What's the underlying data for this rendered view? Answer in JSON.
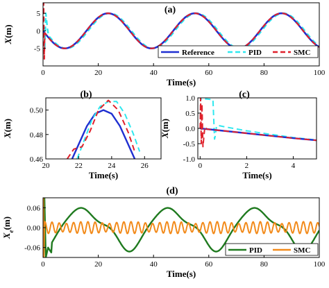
{
  "colors": {
    "reference": "#1f2fd1",
    "pid": "#2fe8ef",
    "smc": "#e0212b",
    "pid_err": "#1f7a1f",
    "smc_err": "#f28a1a"
  },
  "chart_data": [
    {
      "panel_label": "(a)",
      "type": "line",
      "xlabel": "Time(s)",
      "ylabel": "X(m)",
      "xlim": [
        0,
        100
      ],
      "ylim": [
        -10,
        8
      ],
      "xticks": [
        "0",
        "20",
        "40",
        "60",
        "80",
        "100"
      ],
      "yticks": [
        "-5",
        "0",
        "5"
      ],
      "legend": {
        "position": "bottom-right",
        "entries": [
          "Reference",
          "PID",
          "SMC"
        ]
      },
      "series": [
        {
          "name": "Reference",
          "style": "solid",
          "x": [
            0,
            4,
            8,
            12,
            16,
            20,
            24,
            28,
            32,
            36,
            40,
            44,
            48,
            52,
            56,
            60,
            64,
            68,
            72,
            76,
            80,
            84,
            88,
            92,
            96,
            100
          ],
          "y": [
            0,
            -3.6,
            -5,
            -2.2,
            2.2,
            5,
            3.6,
            0,
            -3.6,
            -5,
            -2.2,
            2.2,
            5,
            3.6,
            0,
            -3.6,
            -5,
            -2.2,
            2.2,
            5,
            3.6,
            0,
            -3.6,
            -5,
            -2.2,
            -1.5
          ]
        },
        {
          "name": "PID",
          "style": "dashed",
          "x": [
            0,
            0.3,
            0.6,
            1,
            2,
            4,
            8,
            12,
            16,
            20,
            24,
            28,
            32,
            36,
            40,
            44,
            48,
            52,
            56,
            60,
            64,
            68,
            72,
            76,
            80,
            84,
            88,
            92,
            96,
            100
          ],
          "y": [
            0,
            1,
            -5,
            5,
            0,
            -3.5,
            -5,
            -2.4,
            2,
            4.9,
            3.8,
            0.3,
            -3.4,
            -5,
            -2.4,
            2,
            4.9,
            3.8,
            0.3,
            -3.4,
            -5,
            -2.4,
            2,
            4.9,
            3.8,
            0.3,
            -3.4,
            -5,
            -2.4,
            -1.5
          ]
        },
        {
          "name": "SMC",
          "style": "dashed",
          "x": [
            0,
            0.2,
            0.5,
            1,
            4,
            8,
            12,
            16,
            20,
            24,
            28,
            32,
            36,
            40,
            44,
            48,
            52,
            56,
            60,
            64,
            68,
            72,
            76,
            80,
            84,
            88,
            92,
            96,
            100
          ],
          "y": [
            0,
            8,
            -8,
            -1,
            -3.6,
            -5,
            -2.2,
            2.2,
            5,
            3.6,
            0,
            -3.6,
            -5,
            -2.2,
            2.2,
            5,
            3.6,
            0,
            -3.6,
            -5,
            -2.2,
            2.2,
            5,
            3.6,
            0,
            -3.6,
            -5,
            -2.2,
            -1.5
          ]
        }
      ]
    },
    {
      "panel_label": "(b)",
      "type": "line",
      "xlabel": "Time(s)",
      "ylabel": "X(m)",
      "xlim": [
        20,
        27
      ],
      "ylim": [
        0.46,
        0.51
      ],
      "xticks": [
        "20",
        "22",
        "24",
        "26"
      ],
      "yticks": [
        "0.46",
        "0.48",
        "0.50"
      ],
      "series": [
        {
          "name": "Reference",
          "style": "solid",
          "x": [
            21.6,
            22,
            22.5,
            23,
            23.5,
            24,
            24.5,
            25,
            25.4
          ],
          "y": [
            0.46,
            0.472,
            0.487,
            0.497,
            0.5,
            0.497,
            0.487,
            0.472,
            0.46
          ]
        },
        {
          "name": "PID",
          "style": "dashed",
          "x": [
            21.9,
            22.3,
            22.8,
            23.3,
            23.8,
            24.3,
            24.8,
            25.3,
            25.7
          ],
          "y": [
            0.46,
            0.474,
            0.492,
            0.503,
            0.507,
            0.507,
            0.497,
            0.481,
            0.466
          ]
        },
        {
          "name": "SMC",
          "style": "dashed",
          "x": [
            21.3,
            21.7,
            22.2,
            22.7,
            23.2,
            23.8,
            24.4,
            25,
            25.4
          ],
          "y": [
            0.46,
            0.468,
            0.47,
            0.483,
            0.5,
            0.508,
            0.5,
            0.482,
            0.466
          ]
        }
      ]
    },
    {
      "panel_label": "(c)",
      "type": "line",
      "xlabel": "Time(s)",
      "ylabel": "X(m)",
      "xlim": [
        -0.1,
        5
      ],
      "ylim": [
        -1,
        1
      ],
      "xticks": [
        "0",
        "2",
        "4"
      ],
      "yticks": [
        "-1.0",
        "-0.5",
        "0.0",
        "0.5",
        "1.0"
      ],
      "series": [
        {
          "name": "Reference",
          "style": "solid",
          "x": [
            0,
            1,
            2,
            3,
            4,
            5
          ],
          "y": [
            0,
            -0.08,
            -0.16,
            -0.24,
            -0.32,
            -0.39
          ]
        },
        {
          "name": "PID",
          "style": "dashed",
          "x": [
            0,
            0.02,
            0.05,
            0.1,
            0.3,
            0.55,
            0.62,
            0.65,
            0.7,
            0.75,
            1,
            2,
            3,
            4,
            5
          ],
          "y": [
            0,
            1,
            0.95,
            0.97,
            0.96,
            0.94,
            -0.35,
            -0.25,
            0.05,
            0.1,
            0.06,
            -0.08,
            -0.19,
            -0.3,
            -0.38
          ]
        },
        {
          "name": "SMC",
          "style": "dashed",
          "x": [
            0,
            0.02,
            0.05,
            0.08,
            0.12,
            0.2,
            0.3,
            1,
            2,
            3,
            4,
            5
          ],
          "y": [
            0,
            1,
            -0.5,
            0.8,
            -0.6,
            0.05,
            -0.03,
            -0.08,
            -0.16,
            -0.24,
            -0.32,
            -0.39
          ]
        }
      ]
    },
    {
      "panel_label": "(d)",
      "type": "line",
      "xlabel": "Time(s)",
      "ylabel": "Xe(m)",
      "xlim": [
        0,
        100
      ],
      "ylim": [
        -0.09,
        0.09
      ],
      "xticks": [
        "0",
        "20",
        "40",
        "60",
        "80",
        "100"
      ],
      "yticks": [
        "-0.06",
        "0.00",
        "0.06"
      ],
      "legend": {
        "position": "bottom-right",
        "entries": [
          "PID",
          "SMC"
        ]
      },
      "series": [
        {
          "name": "PID",
          "style": "solid"
        },
        {
          "name": "SMC",
          "style": "solid"
        }
      ]
    }
  ]
}
